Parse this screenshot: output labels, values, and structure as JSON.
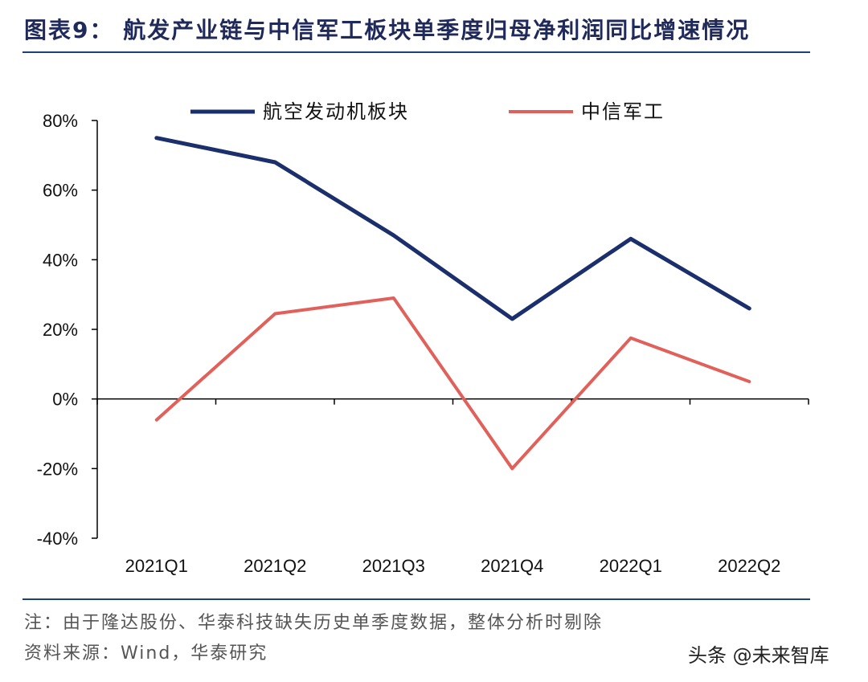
{
  "header": {
    "title": "图表9： 航发产业链与中信军工板块单季度归母净利润同比增速情况"
  },
  "chart_data": {
    "type": "line",
    "categories": [
      "2021Q1",
      "2021Q2",
      "2021Q3",
      "2021Q4",
      "2022Q1",
      "2022Q2"
    ],
    "series": [
      {
        "name": "航空发动机板块",
        "color": "#1a2f6b",
        "values": [
          75,
          68,
          47,
          23,
          46,
          26
        ]
      },
      {
        "name": "中信军工",
        "color": "#e2605a",
        "values": [
          -6,
          24.5,
          29,
          -20,
          17.5,
          5
        ]
      }
    ],
    "yticks": [
      "80%",
      "60%",
      "40%",
      "20%",
      "0%",
      "-20%",
      "-40%"
    ],
    "ylim": [
      -40,
      80
    ],
    "legend_position": "top",
    "grid": false
  },
  "footer": {
    "note": "注：由于隆达股份、华泰科技缺失历史单季度数据，整体分析时剔除",
    "source": "资料来源：Wind，华泰研究",
    "watermark_text": "头条 @未来智库"
  }
}
